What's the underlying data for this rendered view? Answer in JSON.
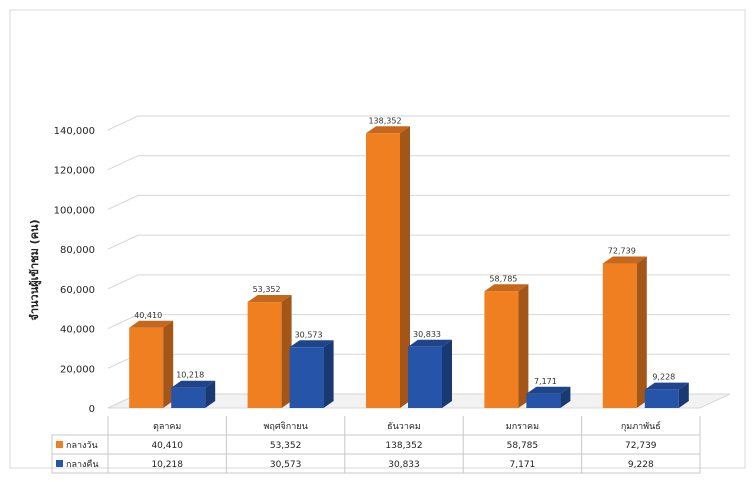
{
  "chart_data": {
    "type": "bar",
    "title": "",
    "xlabel": "",
    "ylabel": "จำนวนผู้เข้าชม (คน)",
    "ylim": [
      0,
      140000
    ],
    "y_ticks": [
      "0",
      "20,000",
      "40,000",
      "60,000",
      "80,000",
      "100,000",
      "120,000",
      "140,000"
    ],
    "y_tick_values": [
      0,
      20000,
      40000,
      60000,
      80000,
      100000,
      120000,
      140000
    ],
    "categories": [
      "ตุลาคม",
      "พฤศจิกายน",
      "ธันวาคม",
      "มกราคม",
      "กุมภาพันธ์"
    ],
    "series": [
      {
        "name": "กลางวัน",
        "color": "#f07f22",
        "values": [
          40410,
          53352,
          138352,
          58785,
          72739
        ],
        "labels": [
          "40,410",
          "53,352",
          "138,352",
          "58,785",
          "72,739"
        ]
      },
      {
        "name": "กลางคืน",
        "color": "#2554a8",
        "values": [
          10218,
          30573,
          30833,
          7171,
          9228
        ],
        "labels": [
          "10,218",
          "30,573",
          "30,833",
          "7,171",
          "9,228"
        ]
      }
    ],
    "grid": true,
    "legend": "data-table-below"
  }
}
